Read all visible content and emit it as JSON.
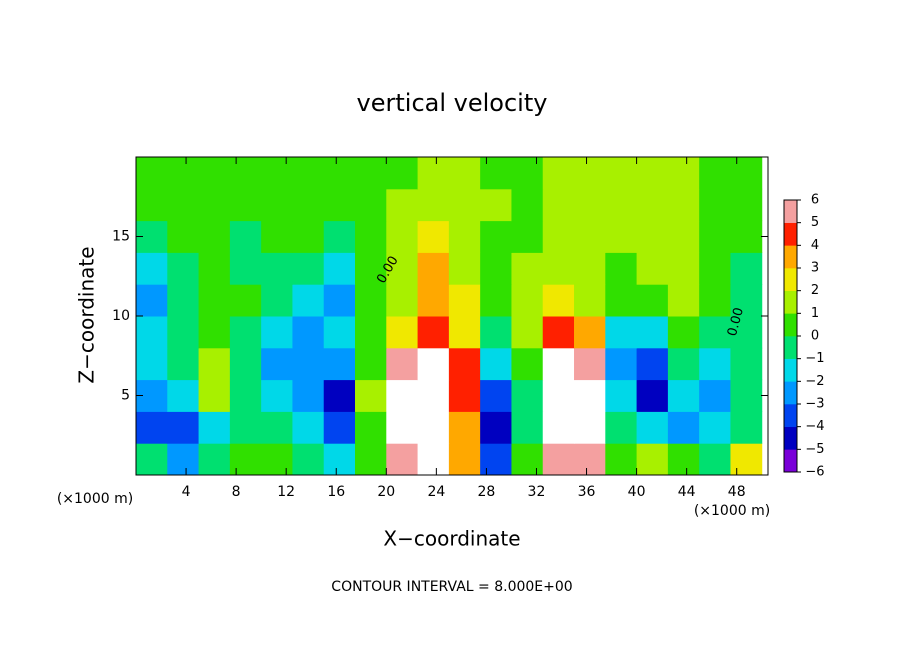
{
  "chart_data": {
    "type": "heatmap",
    "title": "vertical velocity",
    "xlabel": "X−coordinate",
    "ylabel": "Z−coordinate",
    "x_unit": "(×1000 m)",
    "y_unit": "(×1000 m)",
    "footnote": "CONTOUR INTERVAL = 8.000E+00",
    "annotations": [
      "0.00",
      "0.00"
    ],
    "xlim": [
      0,
      50.5
    ],
    "ylim": [
      0,
      20
    ],
    "xticks": [
      4,
      8,
      12,
      16,
      20,
      24,
      28,
      32,
      36,
      40,
      44,
      48
    ],
    "yticks": [
      5,
      10,
      15
    ],
    "x": [
      1.25,
      3.75,
      6.25,
      8.75,
      11.25,
      13.75,
      16.25,
      18.75,
      21.25,
      23.75,
      26.25,
      28.75,
      31.25,
      33.75,
      36.25,
      38.75,
      41.25,
      43.75,
      46.25,
      48.75
    ],
    "z": [
      1,
      3,
      5,
      7,
      9,
      11,
      13,
      15,
      17,
      19
    ],
    "values": [
      [
        -1,
        -3,
        -1,
        0,
        0,
        -1,
        -2,
        0,
        5,
        8,
        3,
        -4,
        0,
        6,
        5,
        0,
        1,
        0,
        -1,
        2
      ],
      [
        -4,
        -4,
        -2,
        -1,
        -1,
        -2,
        -4,
        0,
        7,
        9,
        3,
        -5,
        -1,
        8,
        8,
        -1,
        -2,
        -3,
        -2,
        -1
      ],
      [
        -3,
        -2,
        1,
        -1,
        -2,
        -3,
        -5,
        1,
        7,
        9,
        4,
        -4,
        -1,
        9,
        8,
        -2,
        -5,
        -2,
        -3,
        -1
      ],
      [
        -2,
        -1,
        1,
        -1,
        -3,
        -3,
        -3,
        0,
        5,
        7,
        4,
        -2,
        0,
        7,
        6,
        -3,
        -4,
        -1,
        -2,
        -1
      ],
      [
        -2,
        -1,
        0,
        -1,
        -2,
        -3,
        -2,
        0,
        2,
        4,
        2,
        -1,
        1,
        4,
        3,
        -2,
        -2,
        0,
        -1,
        -1
      ],
      [
        -3,
        -1,
        0,
        0,
        -1,
        -2,
        -3,
        0,
        1,
        3,
        2,
        0,
        1,
        2,
        1,
        0,
        0,
        1,
        0,
        -1
      ],
      [
        -2,
        -1,
        0,
        -1,
        -1,
        -1,
        -2,
        0,
        1,
        3,
        1,
        0,
        1,
        1,
        1,
        0,
        1,
        1,
        0,
        -1
      ],
      [
        -1,
        0,
        0,
        -1,
        0,
        0,
        -1,
        0,
        1,
        2,
        1,
        0,
        0,
        1,
        1,
        1,
        1,
        1,
        0,
        0
      ],
      [
        0,
        0,
        0,
        0,
        0,
        0,
        0,
        0,
        1,
        1,
        1,
        1,
        0,
        1,
        1,
        1,
        1,
        1,
        0,
        0
      ],
      [
        0,
        0,
        0,
        0,
        0,
        0,
        0,
        0,
        0,
        1,
        1,
        0,
        0,
        1,
        1,
        1,
        1,
        1,
        0,
        0
      ]
    ],
    "colorbar_ticks": [
      {
        "value": -6,
        "label": "−6"
      },
      {
        "value": -5,
        "label": "−5"
      },
      {
        "value": -4,
        "label": "−4"
      },
      {
        "value": -3,
        "label": "−3"
      },
      {
        "value": -2,
        "label": "−2"
      },
      {
        "value": -1,
        "label": "−1"
      },
      0,
      1,
      2,
      3,
      4,
      5,
      6
    ],
    "colors": [
      "#7a00d8",
      "#0000c0",
      "#0044f0",
      "#0098ff",
      "#00d8e8",
      "#00e070",
      "#30e000",
      "#a8f000",
      "#f0e800",
      "#ffa800",
      "#ff2000",
      "#f4a0a0"
    ],
    "over_color": "#ffffff"
  }
}
